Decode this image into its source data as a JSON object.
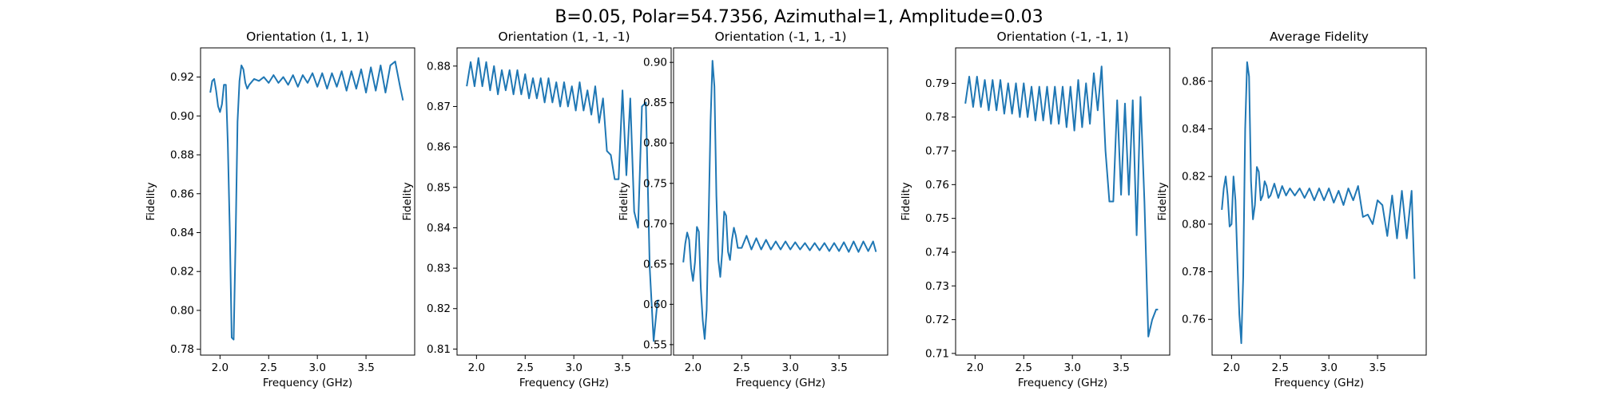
{
  "figure": {
    "suptitle": "B=0.05, Polar=54.7356, Azimuthal=1, Amplitude=0.03",
    "line_color": "#1f77b4"
  },
  "chart_data": [
    {
      "type": "line",
      "title": "Orientation (1, 1, 1)",
      "xlabel": "Frequency (GHz)",
      "ylabel": "Fidelity",
      "xlim": [
        1.8,
        4.0
      ],
      "ylim": [
        0.777,
        0.935
      ],
      "xticks": [
        2.0,
        2.5,
        3.0,
        3.5
      ],
      "yticks": [
        0.78,
        0.8,
        0.82,
        0.84,
        0.86,
        0.88,
        0.9,
        0.92
      ],
      "tick_decimals": 2,
      "grid": false,
      "series": [
        {
          "x": [
            1.9,
            1.92,
            1.94,
            1.96,
            1.98,
            2.0,
            2.02,
            2.04,
            2.06,
            2.08,
            2.1,
            2.12,
            2.14,
            2.16,
            2.18,
            2.2,
            2.22,
            2.24,
            2.26,
            2.28,
            2.3,
            2.35,
            2.4,
            2.45,
            2.5,
            2.55,
            2.6,
            2.65,
            2.7,
            2.75,
            2.8,
            2.85,
            2.9,
            2.95,
            3.0,
            3.05,
            3.1,
            3.15,
            3.2,
            3.25,
            3.3,
            3.35,
            3.4,
            3.45,
            3.5,
            3.55,
            3.6,
            3.65,
            3.7,
            3.75,
            3.8,
            3.85,
            3.88
          ],
          "y": [
            0.912,
            0.918,
            0.919,
            0.913,
            0.905,
            0.902,
            0.906,
            0.916,
            0.916,
            0.886,
            0.842,
            0.786,
            0.785,
            0.836,
            0.897,
            0.918,
            0.926,
            0.924,
            0.917,
            0.914,
            0.916,
            0.919,
            0.918,
            0.92,
            0.917,
            0.921,
            0.917,
            0.92,
            0.916,
            0.921,
            0.915,
            0.921,
            0.917,
            0.922,
            0.915,
            0.922,
            0.914,
            0.922,
            0.915,
            0.923,
            0.913,
            0.923,
            0.914,
            0.924,
            0.912,
            0.925,
            0.913,
            0.926,
            0.912,
            0.926,
            0.928,
            0.915,
            0.908
          ]
        }
      ]
    },
    {
      "type": "line",
      "title": "Orientation (1, -1, -1)",
      "xlabel": "Frequency (GHz)",
      "ylabel": "Fidelity",
      "xlim": [
        1.8,
        4.0
      ],
      "ylim": [
        0.8085,
        0.8845
      ],
      "xticks": [
        2.0,
        2.5,
        3.0,
        3.5
      ],
      "yticks": [
        0.81,
        0.82,
        0.83,
        0.84,
        0.85,
        0.86,
        0.87,
        0.88
      ],
      "tick_decimals": 2,
      "grid": false,
      "series": [
        {
          "x": [
            1.9,
            1.94,
            1.98,
            2.02,
            2.06,
            2.1,
            2.14,
            2.18,
            2.22,
            2.26,
            2.3,
            2.34,
            2.38,
            2.42,
            2.46,
            2.5,
            2.54,
            2.58,
            2.62,
            2.66,
            2.7,
            2.74,
            2.78,
            2.82,
            2.86,
            2.9,
            2.94,
            2.98,
            3.02,
            3.06,
            3.1,
            3.14,
            3.18,
            3.22,
            3.26,
            3.3,
            3.34,
            3.38,
            3.42,
            3.46,
            3.5,
            3.54,
            3.58,
            3.62,
            3.66,
            3.7,
            3.74,
            3.78,
            3.82,
            3.86,
            3.88
          ],
          "y": [
            0.875,
            0.881,
            0.875,
            0.882,
            0.875,
            0.881,
            0.874,
            0.88,
            0.873,
            0.879,
            0.874,
            0.879,
            0.873,
            0.879,
            0.873,
            0.878,
            0.872,
            0.877,
            0.872,
            0.877,
            0.871,
            0.877,
            0.871,
            0.876,
            0.87,
            0.876,
            0.87,
            0.875,
            0.869,
            0.876,
            0.869,
            0.874,
            0.868,
            0.875,
            0.866,
            0.872,
            0.859,
            0.858,
            0.852,
            0.852,
            0.874,
            0.853,
            0.872,
            0.844,
            0.84,
            0.87,
            0.871,
            0.83,
            0.812,
            0.822,
            0.822
          ]
        }
      ]
    },
    {
      "type": "line",
      "title": "Orientation (-1, 1, -1)",
      "xlabel": "Frequency (GHz)",
      "ylabel": "Fidelity",
      "xlim": [
        1.8,
        4.0
      ],
      "ylim": [
        0.537,
        0.918
      ],
      "xticks": [
        2.0,
        2.5,
        3.0,
        3.5
      ],
      "yticks": [
        0.55,
        0.6,
        0.65,
        0.7,
        0.75,
        0.8,
        0.85,
        0.9
      ],
      "tick_decimals": 2,
      "grid": false,
      "series": [
        {
          "x": [
            1.9,
            1.92,
            1.94,
            1.96,
            1.98,
            2.0,
            2.02,
            2.04,
            2.06,
            2.08,
            2.1,
            2.12,
            2.14,
            2.16,
            2.18,
            2.2,
            2.22,
            2.24,
            2.26,
            2.28,
            2.3,
            2.32,
            2.34,
            2.36,
            2.38,
            2.4,
            2.42,
            2.44,
            2.46,
            2.5,
            2.55,
            2.6,
            2.65,
            2.7,
            2.75,
            2.8,
            2.85,
            2.9,
            2.95,
            3.0,
            3.05,
            3.1,
            3.15,
            3.2,
            3.25,
            3.3,
            3.35,
            3.4,
            3.45,
            3.5,
            3.55,
            3.6,
            3.65,
            3.7,
            3.75,
            3.8,
            3.85,
            3.88
          ],
          "y": [
            0.652,
            0.675,
            0.689,
            0.68,
            0.645,
            0.629,
            0.652,
            0.696,
            0.69,
            0.62,
            0.58,
            0.557,
            0.593,
            0.703,
            0.826,
            0.902,
            0.87,
            0.735,
            0.655,
            0.634,
            0.665,
            0.715,
            0.71,
            0.665,
            0.655,
            0.68,
            0.695,
            0.685,
            0.67,
            0.67,
            0.685,
            0.668,
            0.682,
            0.668,
            0.68,
            0.668,
            0.678,
            0.668,
            0.678,
            0.668,
            0.677,
            0.668,
            0.676,
            0.667,
            0.676,
            0.667,
            0.676,
            0.666,
            0.676,
            0.666,
            0.677,
            0.665,
            0.678,
            0.665,
            0.678,
            0.666,
            0.678,
            0.665
          ]
        }
      ]
    },
    {
      "type": "line",
      "title": "Orientation (-1, -1, 1)",
      "xlabel": "Frequency (GHz)",
      "ylabel": "Fidelity",
      "xlim": [
        1.8,
        4.0
      ],
      "ylim": [
        0.7095,
        0.8005
      ],
      "xticks": [
        2.0,
        2.5,
        3.0,
        3.5
      ],
      "yticks": [
        0.71,
        0.72,
        0.73,
        0.74,
        0.75,
        0.76,
        0.77,
        0.78,
        0.79
      ],
      "tick_decimals": 2,
      "grid": false,
      "series": [
        {
          "x": [
            1.9,
            1.94,
            1.98,
            2.02,
            2.06,
            2.1,
            2.14,
            2.18,
            2.22,
            2.26,
            2.3,
            2.34,
            2.38,
            2.42,
            2.46,
            2.5,
            2.54,
            2.58,
            2.62,
            2.66,
            2.7,
            2.74,
            2.78,
            2.82,
            2.86,
            2.9,
            2.94,
            2.98,
            3.02,
            3.06,
            3.1,
            3.14,
            3.18,
            3.22,
            3.26,
            3.3,
            3.34,
            3.38,
            3.42,
            3.46,
            3.5,
            3.54,
            3.58,
            3.62,
            3.66,
            3.7,
            3.74,
            3.78,
            3.82,
            3.86,
            3.88
          ],
          "y": [
            0.784,
            0.792,
            0.783,
            0.792,
            0.783,
            0.791,
            0.782,
            0.791,
            0.782,
            0.791,
            0.781,
            0.79,
            0.781,
            0.79,
            0.78,
            0.79,
            0.78,
            0.789,
            0.779,
            0.789,
            0.779,
            0.789,
            0.778,
            0.789,
            0.778,
            0.789,
            0.777,
            0.789,
            0.776,
            0.791,
            0.777,
            0.79,
            0.778,
            0.793,
            0.782,
            0.795,
            0.77,
            0.755,
            0.755,
            0.785,
            0.757,
            0.784,
            0.757,
            0.785,
            0.745,
            0.786,
            0.755,
            0.715,
            0.72,
            0.723,
            0.723
          ]
        }
      ]
    },
    {
      "type": "line",
      "title": "Average Fidelity",
      "xlabel": "Frequency (GHz)",
      "ylabel": "Fidelity",
      "xlim": [
        1.8,
        4.0
      ],
      "ylim": [
        0.745,
        0.874
      ],
      "xticks": [
        2.0,
        2.5,
        3.0,
        3.5
      ],
      "yticks": [
        0.76,
        0.78,
        0.8,
        0.82,
        0.84,
        0.86
      ],
      "tick_decimals": 2,
      "grid": false,
      "series": [
        {
          "x": [
            1.9,
            1.92,
            1.94,
            1.96,
            1.98,
            2.0,
            2.02,
            2.04,
            2.06,
            2.08,
            2.1,
            2.12,
            2.14,
            2.16,
            2.18,
            2.2,
            2.22,
            2.24,
            2.26,
            2.28,
            2.3,
            2.32,
            2.34,
            2.36,
            2.38,
            2.4,
            2.44,
            2.48,
            2.52,
            2.56,
            2.6,
            2.65,
            2.7,
            2.75,
            2.8,
            2.85,
            2.9,
            2.95,
            3.0,
            3.05,
            3.1,
            3.15,
            3.2,
            3.25,
            3.3,
            3.35,
            3.4,
            3.45,
            3.5,
            3.55,
            3.6,
            3.65,
            3.7,
            3.75,
            3.8,
            3.85,
            3.88
          ],
          "y": [
            0.806,
            0.815,
            0.82,
            0.812,
            0.799,
            0.8,
            0.82,
            0.81,
            0.785,
            0.762,
            0.75,
            0.778,
            0.84,
            0.868,
            0.862,
            0.818,
            0.802,
            0.808,
            0.824,
            0.822,
            0.81,
            0.812,
            0.818,
            0.816,
            0.811,
            0.812,
            0.817,
            0.811,
            0.816,
            0.812,
            0.815,
            0.812,
            0.815,
            0.811,
            0.815,
            0.81,
            0.815,
            0.81,
            0.815,
            0.809,
            0.814,
            0.808,
            0.815,
            0.81,
            0.816,
            0.803,
            0.804,
            0.8,
            0.81,
            0.808,
            0.795,
            0.812,
            0.794,
            0.814,
            0.794,
            0.814,
            0.777
          ]
        }
      ]
    }
  ]
}
